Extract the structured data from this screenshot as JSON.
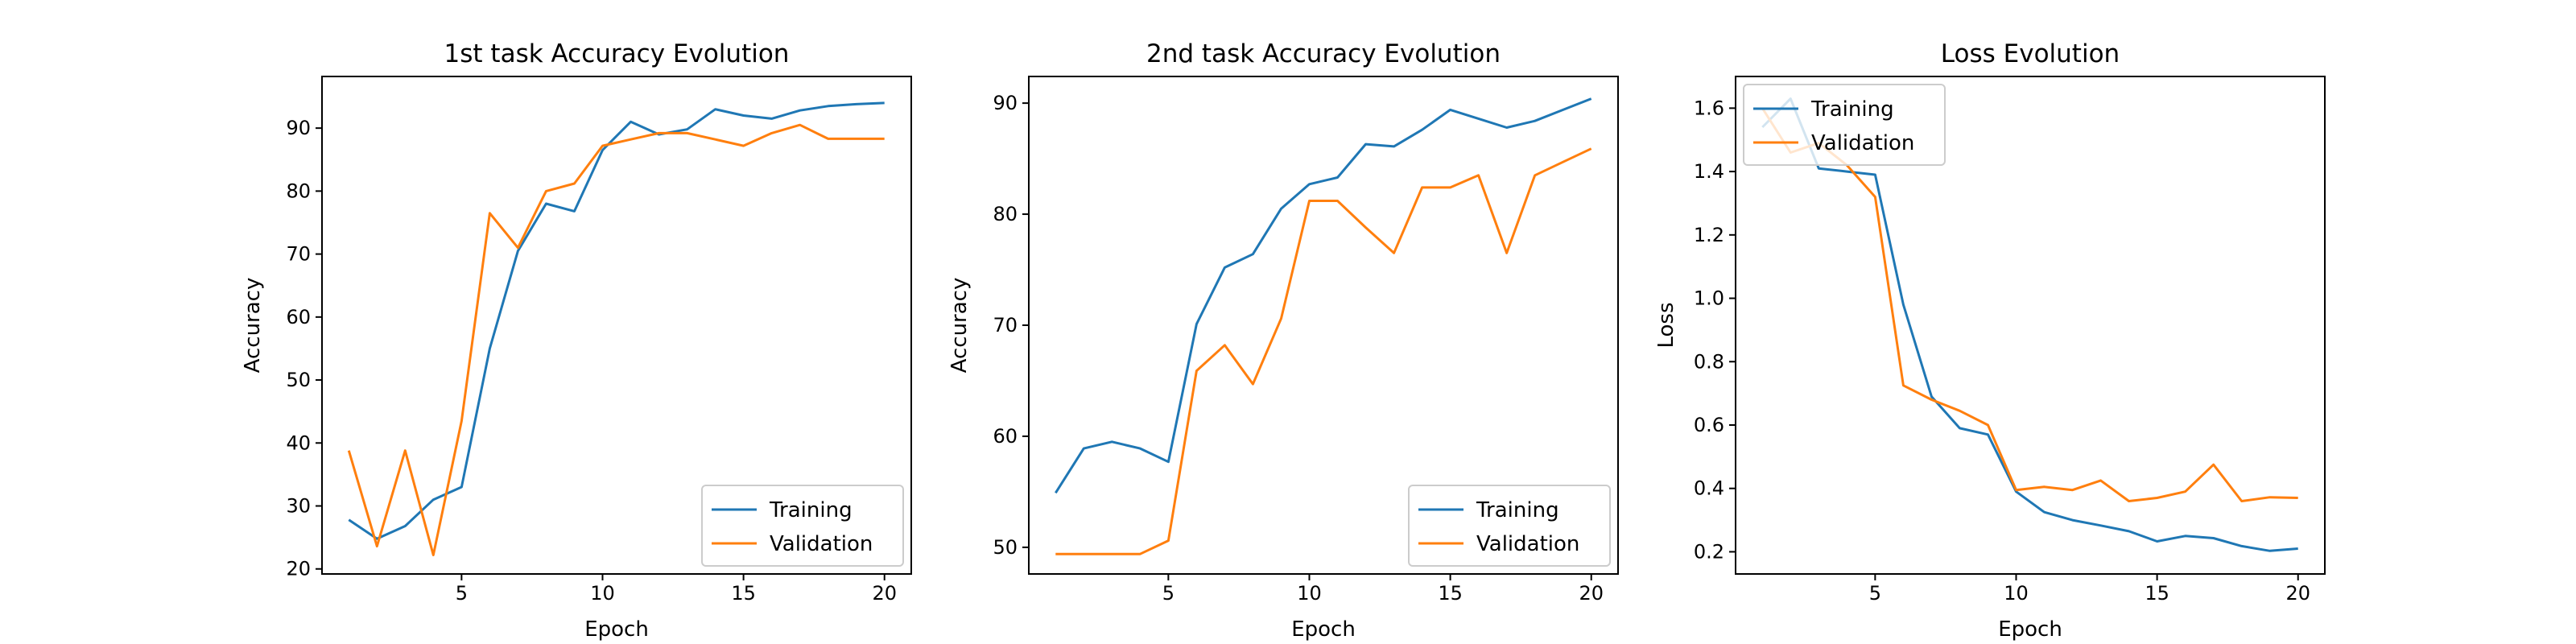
{
  "chart_data": [
    {
      "type": "line",
      "title": "1st task Accuracy Evolution",
      "xlabel": "Epoch",
      "ylabel": "Accuracy",
      "xlim": [
        0.05,
        20.95
      ],
      "ylim": [
        19.2,
        98.2
      ],
      "xticks": [
        5,
        10,
        15,
        20
      ],
      "yticks": [
        20,
        30,
        40,
        50,
        60,
        70,
        80,
        90
      ],
      "legend": "lower right",
      "x": [
        1,
        2,
        3,
        4,
        5,
        6,
        7,
        8,
        9,
        10,
        11,
        12,
        13,
        14,
        15,
        16,
        17,
        18,
        19,
        20
      ],
      "series": [
        {
          "name": "Training",
          "color": "#1f77b4",
          "values": [
            27.8,
            24.8,
            26.8,
            31.0,
            33.0,
            55.0,
            70.5,
            78.0,
            76.8,
            86.5,
            91.0,
            89.0,
            89.8,
            93.0,
            92.0,
            91.5,
            92.8,
            93.5,
            93.8,
            94.0
          ]
        },
        {
          "name": "Validation",
          "color": "#ff7f0e",
          "values": [
            38.8,
            23.6,
            38.8,
            22.2,
            43.5,
            76.5,
            71.0,
            80.0,
            81.2,
            87.2,
            88.2,
            89.2,
            89.2,
            88.2,
            87.2,
            89.2,
            90.5,
            88.3,
            88.3,
            88.3
          ]
        }
      ]
    },
    {
      "type": "line",
      "title": "2nd task Accuracy Evolution",
      "xlabel": "Epoch",
      "ylabel": "Accuracy",
      "xlim": [
        0.05,
        20.95
      ],
      "ylim": [
        47.6,
        92.4
      ],
      "xticks": [
        5,
        10,
        15,
        20
      ],
      "yticks": [
        50,
        60,
        70,
        80,
        90
      ],
      "legend": "lower right",
      "x": [
        1,
        2,
        3,
        4,
        5,
        6,
        7,
        8,
        9,
        10,
        11,
        12,
        13,
        14,
        15,
        16,
        17,
        18,
        19,
        20
      ],
      "series": [
        {
          "name": "Training",
          "color": "#1f77b4",
          "values": [
            54.9,
            58.9,
            59.5,
            58.9,
            57.7,
            70.1,
            75.2,
            76.4,
            80.5,
            82.7,
            83.3,
            86.3,
            86.1,
            87.6,
            89.4,
            88.6,
            87.8,
            88.4,
            89.4,
            90.4
          ]
        },
        {
          "name": "Validation",
          "color": "#ff7f0e",
          "values": [
            49.4,
            49.4,
            49.4,
            49.4,
            50.6,
            65.9,
            68.2,
            64.7,
            70.6,
            81.2,
            81.2,
            78.8,
            76.5,
            82.4,
            82.4,
            83.5,
            76.5,
            83.5,
            84.7,
            85.9
          ]
        }
      ]
    },
    {
      "type": "line",
      "title": "Loss Evolution",
      "xlabel": "Epoch",
      "ylabel": "Loss",
      "xlim": [
        0.05,
        20.95
      ],
      "ylim": [
        0.13,
        1.7
      ],
      "xticks": [
        5,
        10,
        15,
        20
      ],
      "yticks": [
        0.2,
        0.4,
        0.6,
        0.8,
        1.0,
        1.2,
        1.4,
        1.6
      ],
      "ytick_labels": [
        "0.2",
        "0.4",
        "0.6",
        "0.8",
        "1.0",
        "1.2",
        "1.4",
        "1.6"
      ],
      "legend": "upper left",
      "x": [
        1,
        2,
        3,
        4,
        5,
        6,
        7,
        8,
        9,
        10,
        11,
        12,
        13,
        14,
        15,
        16,
        17,
        18,
        19,
        20
      ],
      "series": [
        {
          "name": "Training",
          "color": "#1f77b4",
          "values": [
            1.54,
            1.63,
            1.41,
            1.4,
            1.39,
            0.98,
            0.69,
            0.59,
            0.57,
            0.39,
            0.325,
            0.3,
            0.283,
            0.265,
            0.233,
            0.25,
            0.243,
            0.218,
            0.203,
            0.21
          ]
        },
        {
          "name": "Validation",
          "color": "#ff7f0e",
          "values": [
            1.6,
            1.46,
            1.49,
            1.42,
            1.32,
            0.725,
            0.68,
            0.645,
            0.6,
            0.395,
            0.405,
            0.395,
            0.425,
            0.36,
            0.37,
            0.39,
            0.475,
            0.36,
            0.372,
            0.37
          ]
        }
      ]
    }
  ]
}
